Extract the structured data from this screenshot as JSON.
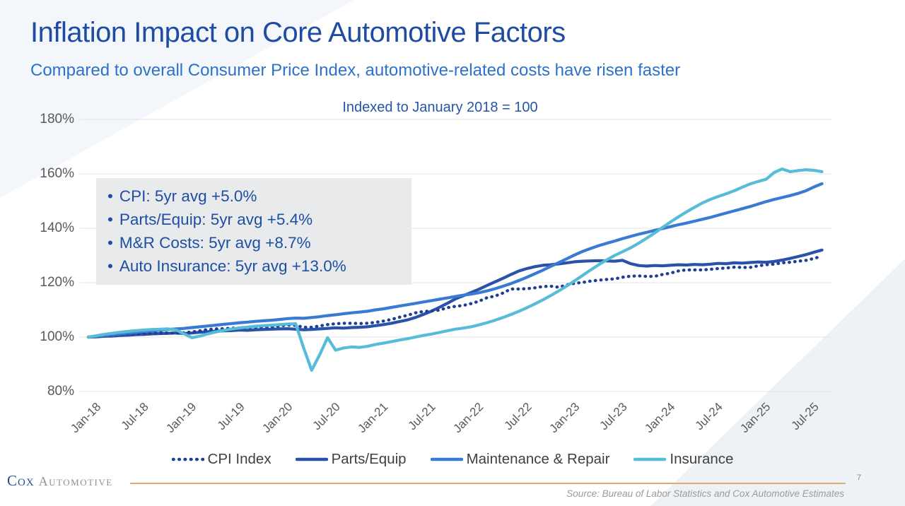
{
  "slide": {
    "title": "Inflation Impact on Core Automotive Factors",
    "subtitle": "Compared to overall Consumer Price Index, automotive-related costs have risen faster",
    "page_number": "7",
    "source": "Source: Bureau of Labor Statistics and Cox Automotive Estimates",
    "logo_cox": "Cox",
    "logo_automotive": "Automotive"
  },
  "annotation": {
    "bullet": "•",
    "items": [
      "CPI: 5yr avg +5.0%",
      "Parts/Equip: 5yr avg +5.4%",
      "M&R Costs: 5yr avg +8.7%",
      "Auto Insurance: 5yr avg +13.0%"
    ]
  },
  "chart_data": {
    "type": "line",
    "title": "Indexed to January 2018 = 100",
    "x_start": "Jan-2018",
    "x_end": "Sep-2025",
    "x_frequency": "monthly",
    "x_tick_labels": [
      "Jan-18",
      "Jul-18",
      "Jan-19",
      "Jul-19",
      "Jan-20",
      "Jul-20",
      "Jan-21",
      "Jul-21",
      "Jan-22",
      "Jul-22",
      "Jan-23",
      "Jul-23",
      "Jan-24",
      "Jul-24",
      "Jan-25",
      "Jul-25"
    ],
    "y_ticks": [
      180,
      160,
      140,
      120,
      100,
      80
    ],
    "y_tick_labels": [
      "180%",
      "160%",
      "140%",
      "120%",
      "100%",
      "80%"
    ],
    "ylim": [
      80,
      180
    ],
    "grid": "horizontal",
    "legend_position": "bottom",
    "series": [
      {
        "name": "CPI Index",
        "style": "dotted",
        "color": "#1e3f96",
        "values": [
          100.0,
          100.2,
          100.4,
          100.7,
          100.9,
          101.1,
          101.2,
          101.3,
          101.4,
          101.6,
          101.5,
          101.4,
          101.6,
          101.9,
          102.3,
          102.8,
          103.0,
          103.1,
          103.3,
          103.3,
          103.4,
          103.6,
          103.7,
          103.7,
          104.1,
          104.4,
          104.3,
          103.6,
          103.6,
          104.1,
          104.6,
          104.9,
          105.1,
          105.1,
          105.0,
          105.1,
          105.4,
          105.9,
          106.5,
          107.3,
          108.0,
          108.9,
          109.4,
          109.6,
          109.9,
          110.8,
          111.3,
          111.6,
          112.3,
          113.2,
          114.5,
          115.1,
          116.2,
          117.7,
          117.7,
          117.8,
          118.1,
          118.6,
          118.7,
          118.3,
          119.2,
          119.8,
          120.1,
          120.6,
          120.9,
          121.2,
          121.4,
          122.0,
          122.4,
          122.5,
          122.3,
          122.3,
          123.0,
          123.5,
          124.3,
          124.7,
          124.7,
          124.7,
          124.9,
          125.2,
          125.4,
          125.7,
          125.6,
          125.6,
          126.2,
          126.6,
          126.8,
          127.3,
          127.5,
          127.9,
          128.2,
          128.9,
          129.8
        ]
      },
      {
        "name": "Parts/Equip",
        "style": "solid",
        "color": "#2a52a8",
        "values": [
          100.0,
          100.1,
          100.3,
          100.4,
          100.6,
          100.7,
          100.9,
          101.0,
          101.2,
          101.3,
          101.4,
          101.5,
          101.3,
          101.5,
          101.8,
          102.0,
          102.2,
          102.3,
          102.4,
          102.6,
          102.5,
          102.7,
          102.8,
          102.9,
          103.0,
          103.1,
          102.9,
          102.7,
          102.8,
          103.0,
          103.2,
          103.4,
          103.3,
          103.5,
          103.6,
          103.8,
          104.2,
          104.6,
          105.1,
          105.7,
          106.3,
          107.2,
          108.3,
          109.5,
          110.9,
          112.4,
          114.0,
          115.2,
          116.4,
          117.6,
          119.0,
          120.3,
          121.6,
          123.0,
          124.3,
          125.2,
          125.9,
          126.4,
          126.6,
          126.9,
          127.3,
          127.7,
          127.9,
          128.0,
          128.1,
          128.0,
          127.9,
          128.2,
          127.0,
          126.3,
          126.1,
          126.3,
          126.2,
          126.4,
          126.6,
          126.5,
          126.7,
          126.6,
          126.8,
          127.1,
          127.0,
          127.3,
          127.2,
          127.4,
          127.6,
          127.5,
          127.8,
          128.3,
          128.9,
          129.6,
          130.3,
          131.2,
          132.0
        ]
      },
      {
        "name": "Maintenance & Repair",
        "style": "solid",
        "color": "#3b7ad2",
        "values": [
          100.0,
          100.3,
          100.6,
          100.9,
          101.2,
          101.5,
          101.8,
          102.1,
          102.3,
          102.6,
          102.8,
          103.0,
          103.2,
          103.5,
          103.8,
          104.1,
          104.4,
          104.7,
          105.0,
          105.3,
          105.5,
          105.8,
          106.0,
          106.2,
          106.5,
          106.8,
          107.0,
          106.9,
          107.2,
          107.5,
          107.9,
          108.2,
          108.6,
          108.9,
          109.2,
          109.5,
          110.0,
          110.4,
          110.9,
          111.4,
          111.9,
          112.4,
          112.9,
          113.4,
          113.9,
          114.4,
          114.9,
          115.4,
          115.8,
          116.3,
          117.0,
          117.8,
          118.7,
          119.7,
          120.8,
          122.0,
          123.3,
          124.6,
          126.0,
          127.4,
          128.8,
          130.2,
          131.5,
          132.6,
          133.6,
          134.5,
          135.3,
          136.2,
          137.0,
          137.8,
          138.5,
          139.2,
          139.9,
          140.6,
          141.3,
          141.9,
          142.6,
          143.3,
          144.0,
          144.8,
          145.6,
          146.4,
          147.2,
          148.0,
          148.9,
          149.8,
          150.6,
          151.3,
          152.0,
          152.8,
          153.8,
          155.2,
          156.4
        ]
      },
      {
        "name": "Insurance",
        "style": "solid",
        "color": "#56bcd8",
        "values": [
          100.0,
          100.5,
          101.0,
          101.4,
          101.8,
          102.1,
          102.4,
          102.6,
          102.8,
          102.9,
          103.0,
          102.6,
          101.2,
          99.8,
          100.4,
          101.2,
          101.9,
          102.5,
          103.0,
          103.4,
          103.7,
          104.0,
          104.2,
          104.4,
          104.6,
          104.8,
          104.9,
          96.0,
          87.8,
          93.5,
          99.8,
          95.2,
          96.0,
          96.4,
          96.2,
          96.6,
          97.3,
          97.8,
          98.3,
          98.9,
          99.4,
          100.0,
          100.6,
          101.1,
          101.7,
          102.3,
          102.9,
          103.3,
          103.8,
          104.5,
          105.3,
          106.2,
          107.2,
          108.3,
          109.5,
          110.8,
          112.2,
          113.7,
          115.3,
          117.0,
          118.8,
          120.7,
          122.7,
          124.7,
          126.6,
          128.4,
          130.0,
          131.4,
          132.8,
          134.5,
          136.3,
          138.2,
          140.3,
          142.3,
          144.2,
          146.0,
          147.7,
          149.3,
          150.6,
          151.7,
          152.7,
          153.8,
          155.1,
          156.3,
          157.2,
          158.0,
          160.5,
          161.8,
          160.8,
          161.2,
          161.5,
          161.3,
          160.8
        ]
      }
    ]
  }
}
